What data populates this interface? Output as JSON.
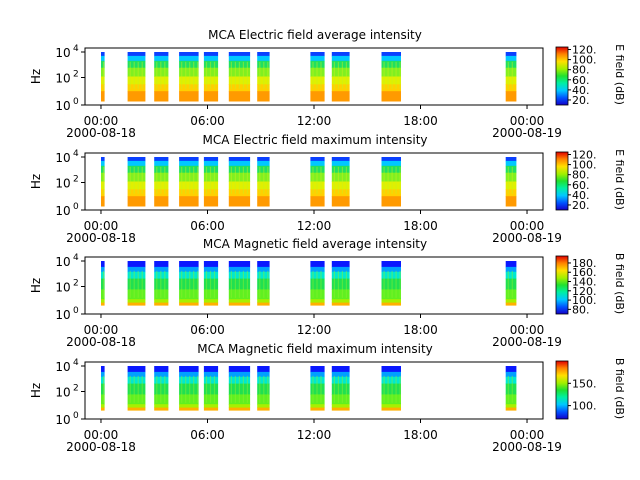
{
  "chart_data": [
    {
      "type": "heatmap",
      "title": "MCA  Electric field average intensity",
      "ylabel": "Hz",
      "colorbar_label": "E field (dB)",
      "colorbar_ticks": [
        "20.",
        "40.",
        "60.",
        "80.",
        "100.",
        "120."
      ],
      "colorbar_range": [
        10,
        125
      ],
      "y_tick_labels": [
        "10",
        "10",
        "10"
      ],
      "y_tick_exponents": [
        "0",
        "2",
        "4"
      ],
      "bursts": [
        {
          "start_h": 0.0,
          "end_h": 0.2
        },
        {
          "start_h": 1.5,
          "end_h": 2.5
        },
        {
          "start_h": 3.0,
          "end_h": 3.8
        },
        {
          "start_h": 4.4,
          "end_h": 5.5
        },
        {
          "start_h": 5.8,
          "end_h": 6.6
        },
        {
          "start_h": 7.2,
          "end_h": 8.4
        },
        {
          "start_h": 8.8,
          "end_h": 9.5
        },
        {
          "start_h": 11.8,
          "end_h": 12.6
        },
        {
          "start_h": 13.0,
          "end_h": 14.0
        },
        {
          "start_h": 15.8,
          "end_h": 16.9
        },
        {
          "start_h": 22.8,
          "end_h": 23.4
        }
      ]
    },
    {
      "type": "heatmap",
      "title": "MCA  Electric field maximum intensity",
      "ylabel": "Hz",
      "colorbar_label": "E field (dB)",
      "colorbar_ticks": [
        "20.",
        "40.",
        "60.",
        "80.",
        "100.",
        "120."
      ],
      "colorbar_range": [
        10,
        125
      ],
      "y_tick_labels": [
        "10",
        "10",
        "10"
      ],
      "y_tick_exponents": [
        "0",
        "2",
        "4"
      ],
      "bursts": [
        {
          "start_h": 0.0,
          "end_h": 0.2
        },
        {
          "start_h": 1.5,
          "end_h": 2.5
        },
        {
          "start_h": 3.0,
          "end_h": 3.8
        },
        {
          "start_h": 4.4,
          "end_h": 5.5
        },
        {
          "start_h": 5.8,
          "end_h": 6.6
        },
        {
          "start_h": 7.2,
          "end_h": 8.4
        },
        {
          "start_h": 8.8,
          "end_h": 9.5
        },
        {
          "start_h": 11.8,
          "end_h": 12.6
        },
        {
          "start_h": 13.0,
          "end_h": 14.0
        },
        {
          "start_h": 15.8,
          "end_h": 16.9
        },
        {
          "start_h": 22.8,
          "end_h": 23.4
        }
      ]
    },
    {
      "type": "heatmap",
      "title": "MCA  Magnetic field average intensity",
      "ylabel": "Hz",
      "colorbar_label": "B field (dB)",
      "colorbar_ticks": [
        "80.",
        "100.",
        "120.",
        "140.",
        "160.",
        "180."
      ],
      "colorbar_range": [
        70,
        195
      ],
      "y_tick_labels": [
        "10",
        "10",
        "10"
      ],
      "y_tick_exponents": [
        "0",
        "2",
        "4"
      ],
      "bursts": [
        {
          "start_h": 0.0,
          "end_h": 0.2
        },
        {
          "start_h": 1.5,
          "end_h": 2.5
        },
        {
          "start_h": 3.0,
          "end_h": 3.8
        },
        {
          "start_h": 4.4,
          "end_h": 5.5
        },
        {
          "start_h": 5.8,
          "end_h": 6.6
        },
        {
          "start_h": 7.2,
          "end_h": 8.4
        },
        {
          "start_h": 8.8,
          "end_h": 9.5
        },
        {
          "start_h": 11.8,
          "end_h": 12.6
        },
        {
          "start_h": 13.0,
          "end_h": 14.0
        },
        {
          "start_h": 15.8,
          "end_h": 16.9
        },
        {
          "start_h": 22.8,
          "end_h": 23.4
        }
      ]
    },
    {
      "type": "heatmap",
      "title": "MCA  Magnetic field maximum intensity",
      "ylabel": "Hz",
      "colorbar_label": "B field (dB)",
      "colorbar_ticks": [
        "100.",
        "150."
      ],
      "colorbar_range": [
        70,
        200
      ],
      "y_tick_labels": [
        "10",
        "10",
        "10"
      ],
      "y_tick_exponents": [
        "0",
        "2",
        "4"
      ],
      "bursts": [
        {
          "start_h": 0.0,
          "end_h": 0.2
        },
        {
          "start_h": 1.5,
          "end_h": 2.5
        },
        {
          "start_h": 3.0,
          "end_h": 3.8
        },
        {
          "start_h": 4.4,
          "end_h": 5.5
        },
        {
          "start_h": 5.8,
          "end_h": 6.6
        },
        {
          "start_h": 7.2,
          "end_h": 8.4
        },
        {
          "start_h": 8.8,
          "end_h": 9.5
        },
        {
          "start_h": 11.8,
          "end_h": 12.6
        },
        {
          "start_h": 13.0,
          "end_h": 14.0
        },
        {
          "start_h": 15.8,
          "end_h": 16.9
        },
        {
          "start_h": 22.8,
          "end_h": 23.4
        }
      ]
    }
  ],
  "x_axis": {
    "range_h": [
      -0.9,
      24.9
    ],
    "ticks": [
      {
        "h": 0,
        "label": "00:00",
        "date": "2000-08-18"
      },
      {
        "h": 6,
        "label": "06:00",
        "date": ""
      },
      {
        "h": 12,
        "label": "12:00",
        "date": ""
      },
      {
        "h": 18,
        "label": "18:00",
        "date": ""
      },
      {
        "h": 24,
        "label": "00:00",
        "date": "2000-08-19"
      }
    ]
  }
}
